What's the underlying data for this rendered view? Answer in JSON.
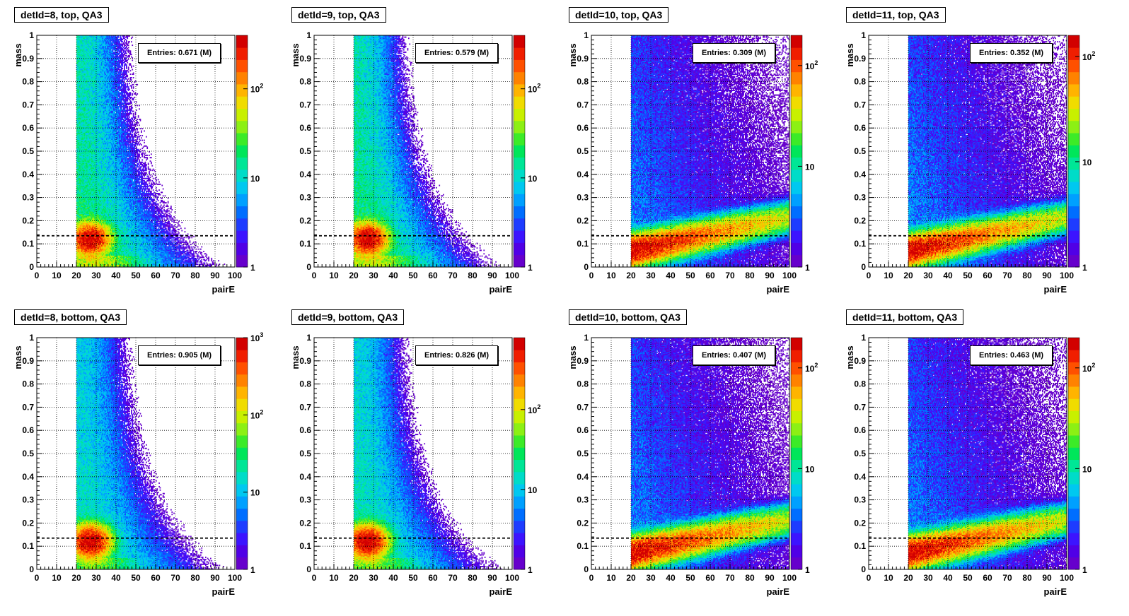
{
  "chart_data": [
    {
      "type": "heatmap",
      "title": "detId=8, top, QA3",
      "entries": "Entries: 0.671 (M)",
      "xlabel": "pairE",
      "ylabel": "mass",
      "xlim": [
        0,
        100
      ],
      "ylim": [
        0,
        1
      ],
      "cut_line_y": 0.135,
      "z_log": true,
      "z_labels": [
        "1",
        "10",
        "10^2"
      ],
      "z_max_exp": 2.6,
      "pattern": "narrow",
      "grid": true
    },
    {
      "type": "heatmap",
      "title": "detId=9, top, QA3",
      "entries": "Entries: 0.579 (M)",
      "xlabel": "pairE",
      "ylabel": "mass",
      "xlim": [
        0,
        100
      ],
      "ylim": [
        0,
        1
      ],
      "cut_line_y": 0.135,
      "z_log": true,
      "z_labels": [
        "1",
        "10",
        "10^2"
      ],
      "z_max_exp": 2.6,
      "pattern": "narrow",
      "grid": true
    },
    {
      "type": "heatmap",
      "title": "detId=10, top, QA3",
      "entries": "Entries: 0.309 (M)",
      "xlabel": "pairE",
      "ylabel": "mass",
      "xlim": [
        0,
        100
      ],
      "ylim": [
        0,
        1
      ],
      "cut_line_y": 0.135,
      "z_log": true,
      "z_labels": [
        "1",
        "10",
        "10^2"
      ],
      "z_max_exp": 2.3,
      "pattern": "wide",
      "grid": true
    },
    {
      "type": "heatmap",
      "title": "detId=11, top, QA3",
      "entries": "Entries: 0.352 (M)",
      "xlabel": "pairE",
      "ylabel": "mass",
      "xlim": [
        0,
        100
      ],
      "ylim": [
        0,
        1
      ],
      "cut_line_y": 0.135,
      "z_log": true,
      "z_labels": [
        "1",
        "10",
        "10^2"
      ],
      "z_max_exp": 2.2,
      "pattern": "wide",
      "grid": true
    },
    {
      "type": "heatmap",
      "title": "detId=8, bottom, QA3",
      "entries": "Entries: 0.905 (M)",
      "xlabel": "pairE",
      "ylabel": "mass",
      "xlim": [
        0,
        100
      ],
      "ylim": [
        0,
        1
      ],
      "cut_line_y": 0.135,
      "z_log": true,
      "z_labels": [
        "1",
        "10",
        "10^2",
        "10^3"
      ],
      "z_max_exp": 3.0,
      "pattern": "narrow",
      "grid": true
    },
    {
      "type": "heatmap",
      "title": "detId=9, bottom, QA3",
      "entries": "Entries: 0.826 (M)",
      "xlabel": "pairE",
      "ylabel": "mass",
      "xlim": [
        0,
        100
      ],
      "ylim": [
        0,
        1
      ],
      "cut_line_y": 0.135,
      "z_log": true,
      "z_labels": [
        "1",
        "10",
        "10^2"
      ],
      "z_max_exp": 2.9,
      "pattern": "narrow",
      "grid": true
    },
    {
      "type": "heatmap",
      "title": "detId=10, bottom, QA3",
      "entries": "Entries: 0.407 (M)",
      "xlabel": "pairE",
      "ylabel": "mass",
      "xlim": [
        0,
        100
      ],
      "ylim": [
        0,
        1
      ],
      "cut_line_y": 0.135,
      "z_log": true,
      "z_labels": [
        "1",
        "10",
        "10^2"
      ],
      "z_max_exp": 2.3,
      "pattern": "wide",
      "grid": true
    },
    {
      "type": "heatmap",
      "title": "detId=11, bottom, QA3",
      "entries": "Entries: 0.463 (M)",
      "xlabel": "pairE",
      "ylabel": "mass",
      "xlim": [
        0,
        100
      ],
      "ylim": [
        0,
        1
      ],
      "cut_line_y": 0.135,
      "z_log": true,
      "z_labels": [
        "1",
        "10",
        "10^2"
      ],
      "z_max_exp": 2.3,
      "pattern": "wide",
      "grid": true
    }
  ],
  "x_ticks": [
    "0",
    "10",
    "20",
    "30",
    "40",
    "50",
    "60",
    "70",
    "80",
    "90",
    "100"
  ],
  "y_ticks": [
    "0",
    "0.1",
    "0.2",
    "0.3",
    "0.4",
    "0.5",
    "0.6",
    "0.7",
    "0.8",
    "0.9",
    "1"
  ],
  "colors": {
    "cut_line": "#000000",
    "frame": "#000000",
    "grid": "#000000",
    "background": "#ffffff"
  }
}
